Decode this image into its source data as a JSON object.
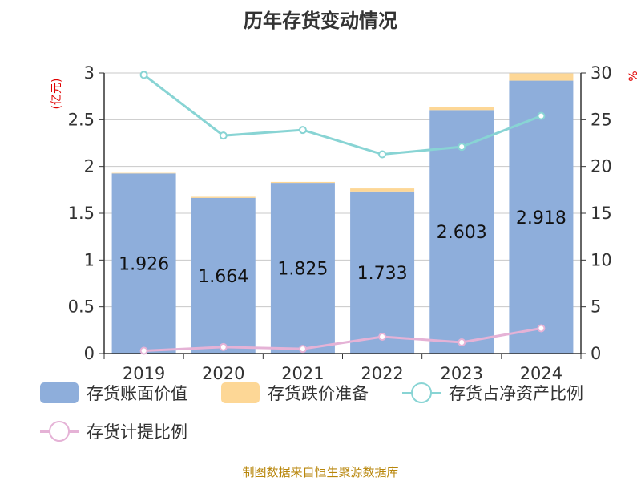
{
  "title": "历年存货变动情况",
  "source": "制图数据来自恒生聚源数据库",
  "legend": [
    {
      "key": "book_value",
      "label": "存货账面价值",
      "color": "#8eaedb",
      "kind": "bar"
    },
    {
      "key": "provision",
      "label": "存货跌价准备",
      "color": "#fdd796",
      "kind": "bar"
    },
    {
      "key": "net_asset_ratio",
      "label": "存货占净资产比例",
      "color": "#88d4d4",
      "kind": "line"
    },
    {
      "key": "provision_ratio",
      "label": "存货计提比例",
      "color": "#e5b2d6",
      "kind": "line"
    }
  ],
  "chart_data": {
    "type": "bar",
    "categories": [
      "2019",
      "2020",
      "2021",
      "2022",
      "2023",
      "2024"
    ],
    "left_axis": {
      "label": "(亿元)",
      "ylim": [
        0,
        3
      ],
      "ticks": [
        "0",
        "0.5",
        "1",
        "1.5",
        "2",
        "2.5",
        "3"
      ]
    },
    "right_axis": {
      "label": "%",
      "ylim": [
        0,
        30
      ],
      "ticks": [
        "0",
        "5",
        "10",
        "15",
        "20",
        "25",
        "30"
      ]
    },
    "grid": true,
    "legend_position": "bottom",
    "series": [
      {
        "name": "存货账面价值",
        "type": "bar",
        "stack": "inventory",
        "axis": "left",
        "color": "#8eaedb",
        "values": [
          1.926,
          1.664,
          1.825,
          1.733,
          2.603,
          2.918
        ],
        "data_labels": [
          "1.926",
          "1.664",
          "1.825",
          "1.733",
          "2.603",
          "2.918"
        ]
      },
      {
        "name": "存货跌价准备",
        "type": "bar",
        "stack": "inventory",
        "axis": "left",
        "color": "#fdd796",
        "values": [
          0.006,
          0.012,
          0.01,
          0.032,
          0.034,
          0.078
        ]
      },
      {
        "name": "存货占净资产比例",
        "type": "line",
        "axis": "right",
        "color": "#88d4d4",
        "values": [
          29.8,
          23.3,
          23.9,
          21.3,
          22.1,
          25.4
        ]
      },
      {
        "name": "存货计提比例",
        "type": "line",
        "axis": "right",
        "color": "#e5b2d6",
        "values": [
          0.3,
          0.7,
          0.5,
          1.8,
          1.2,
          2.7
        ]
      }
    ]
  }
}
